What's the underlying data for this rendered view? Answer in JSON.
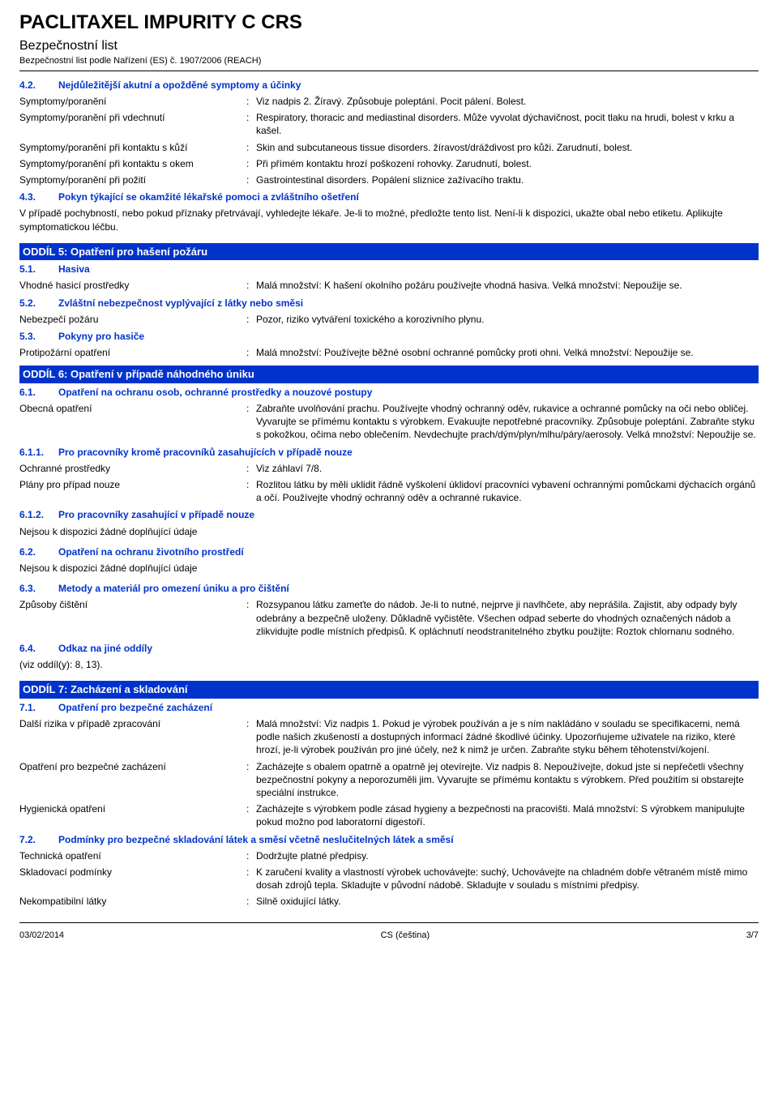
{
  "header": {
    "title": "PACLITAXEL IMPURITY C CRS",
    "subtitle": "Bezpečnostní list",
    "subnote": "Bezpečnostní list podle Nařízení (ES) č. 1907/2006 (REACH)"
  },
  "s42": {
    "num": "4.2.",
    "title": "Nejdůležitější akutní a opožděné symptomy a účinky",
    "rows": [
      {
        "label": "Symptomy/poranění",
        "value": "Viz nadpis 2. Žíravý. Způsobuje poleptání. Pocit pálení. Bolest."
      },
      {
        "label": "Symptomy/poranění při vdechnutí",
        "value": "Respiratory, thoracic and mediastinal disorders. Může vyvolat dýchavičnost, pocit tlaku na hrudi, bolest v krku a kašel."
      },
      {
        "label": "Symptomy/poranění při kontaktu s kůží",
        "value": "Skin and subcutaneous tissue disorders. žíravost/dráždivost pro kůži. Zarudnutí, bolest."
      },
      {
        "label": "Symptomy/poranění při kontaktu s okem",
        "value": "Při přímém kontaktu hrozí poškození rohovky. Zarudnutí, bolest."
      },
      {
        "label": "Symptomy/poranění při požití",
        "value": "Gastrointestinal disorders. Popálení sliznice zažívacího traktu."
      }
    ]
  },
  "s43": {
    "num": "4.3.",
    "title": "Pokyn týkající se okamžité lékařské pomoci a zvláštního ošetření",
    "para": "V případě pochybností, nebo pokud příznaky přetrvávají, vyhledejte lékaře. Je-li to možné, předložte tento list. Není-li k dispozici, ukažte obal nebo etiketu. Aplikujte symptomatickou léčbu."
  },
  "s5": {
    "title": "ODDÍL 5: Opatření pro hašení požáru",
    "s51": {
      "num": "5.1.",
      "title": "Hasiva",
      "rows": [
        {
          "label": "Vhodné hasicí prostředky",
          "value": "Malá množství: K hašení okolního požáru používejte vhodná hasiva. Velká množství: Nepoužije se."
        }
      ]
    },
    "s52": {
      "num": "5.2.",
      "title": "Zvláštní nebezpečnost vyplývající z látky nebo směsi",
      "rows": [
        {
          "label": "Nebezpečí požáru",
          "value": "Pozor, riziko vytváření toxického a korozivního plynu."
        }
      ]
    },
    "s53": {
      "num": "5.3.",
      "title": "Pokyny pro hasiče",
      "rows": [
        {
          "label": "Protipožární opatření",
          "value": "Malá množství: Používejte běžné osobní ochranné pomůcky proti ohni. Velká množství: Nepoužije se."
        }
      ]
    }
  },
  "s6": {
    "title": "ODDÍL 6: Opatření v případě náhodného úniku",
    "s61": {
      "num": "6.1.",
      "title": "Opatření na ochranu osob, ochranné prostředky a nouzové postupy",
      "rows": [
        {
          "label": "Obecná opatření",
          "value": "Zabraňte uvolňování prachu. Používejte vhodný ochranný oděv, rukavice a ochranné pomůcky na oči nebo obličej. Vyvarujte se přímému kontaktu s výrobkem. Evakuujte nepotřebné pracovníky. Způsobuje poleptání. Zabraňte styku s pokožkou, očima nebo oblečením. Nevdechujte prach/dým/plyn/mlhu/páry/aerosoly. Velká množství: Nepoužije se."
        }
      ]
    },
    "s611": {
      "num": "6.1.1.",
      "title": "Pro pracovníky kromě pracovníků zasahujících v případě nouze",
      "rows": [
        {
          "label": "Ochranné prostředky",
          "value": "Viz záhlaví 7/8."
        },
        {
          "label": "Plány pro případ nouze",
          "value": "Rozlitou látku by měli uklidit řádně vyškolení úklidoví pracovníci vybavení ochrannými pomůckami dýchacích orgánů a očí. Používejte vhodný ochranný oděv a ochranné rukavice."
        }
      ]
    },
    "s612": {
      "num": "6.1.2.",
      "title": "Pro pracovníky zasahující v případě nouze",
      "para": "Nejsou k dispozici žádné doplňující údaje"
    },
    "s62": {
      "num": "6.2.",
      "title": "Opatření na ochranu životního prostředí",
      "para": "Nejsou k dispozici žádné doplňující údaje"
    },
    "s63": {
      "num": "6.3.",
      "title": "Metody a materiál pro omezení úniku a pro čištění",
      "rows": [
        {
          "label": "Způsoby čištění",
          "value": "Rozsypanou látku zameťte do nádob. Je-li to nutné, nejprve ji navlhčete, aby neprášila. Zajistit, aby odpady byly odebrány a bezpečně uloženy. Důkladně vyčistěte. Všechen odpad seberte do vhodných označených nádob a zlikvidujte podle místních předpisů. K opláchnutí neodstranitelného zbytku použijte: Roztok chlornanu sodného."
        }
      ]
    },
    "s64": {
      "num": "6.4.",
      "title": "Odkaz na jiné oddíly",
      "para": "(viz oddíl(y): 8, 13)."
    }
  },
  "s7": {
    "title": "ODDÍL 7: Zacházení a skladování",
    "s71": {
      "num": "7.1.",
      "title": "Opatření pro bezpečné zacházení",
      "rows": [
        {
          "label": "Další rizika v případě zpracování",
          "value": "Malá množství: Viz nadpis 1. Pokud je výrobek používán a je s ním nakládáno v souladu se specifikacemi, nemá podle našich zkušeností a dostupných informací žádné škodlivé účinky. Upozorňujeme uživatele na riziko, které hrozí, je-li výrobek používán pro jiné účely, než k nimž je určen. Zabraňte styku během těhotenství/kojení."
        },
        {
          "label": "Opatření pro bezpečné zacházení",
          "value": "Zacházejte s obalem opatrně a opatrně jej otevírejte. Viz nadpis 8. Nepoužívejte, dokud jste si nepřečetli všechny bezpečnostní pokyny a neporozuměli jim. Vyvarujte se přímému kontaktu s výrobkem. Před použitím si obstarejte speciální instrukce."
        },
        {
          "label": "Hygienická opatření",
          "value": "Zacházejte s výrobkem podle zásad hygieny a bezpečnosti na pracovišti. Malá množství: S výrobkem manipulujte pokud možno pod laboratorní digestoří."
        }
      ]
    },
    "s72": {
      "num": "7.2.",
      "title": "Podmínky pro bezpečné skladování látek a směsí včetně neslučitelných látek a směsí",
      "rows": [
        {
          "label": "Technická opatření",
          "value": "Dodržujte platné předpisy."
        },
        {
          "label": "Skladovací podmínky",
          "value": "K zaručení kvality a vlastností výrobek uchovávejte: suchý, Uchovávejte na chladném dobře větraném místě mimo dosah zdrojů tepla. Skladujte v původní nádobě. Skladujte v souladu s místními předpisy."
        },
        {
          "label": "Nekompatibilní látky",
          "value": "Silně oxidující látky."
        }
      ]
    }
  },
  "footer": {
    "date": "03/02/2014",
    "lang": "CS (čeština)",
    "page": "3/7"
  }
}
